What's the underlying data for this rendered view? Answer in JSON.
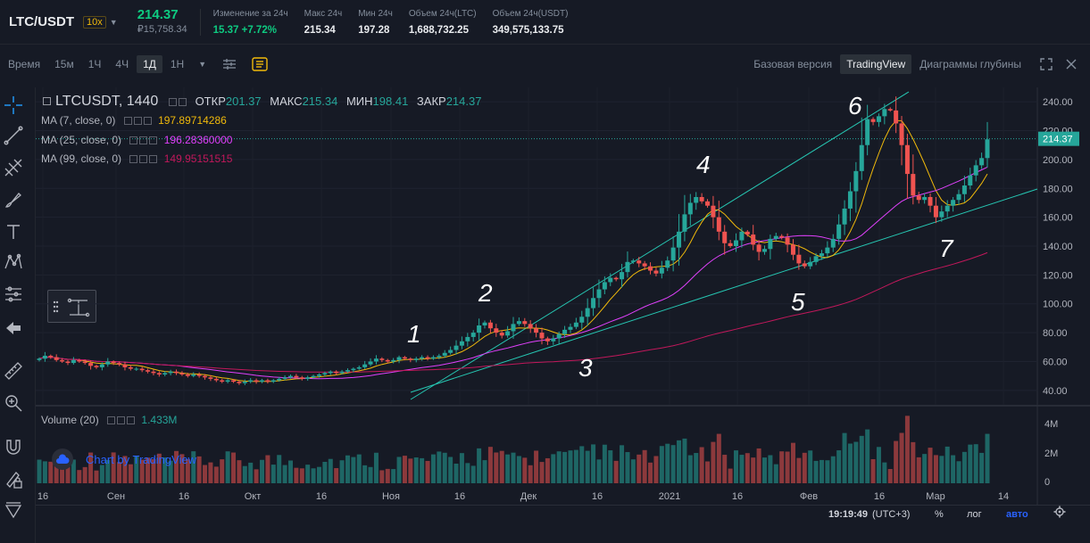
{
  "ticker": {
    "pair": "LTC/USDT",
    "leverage": "10x",
    "last_price": "214.37",
    "rub_price": "₽15,758.34",
    "stats": [
      {
        "label": "Изменение за 24ч",
        "value": "15.37 +7.72%",
        "up": true
      },
      {
        "label": "Макс 24ч",
        "value": "215.34",
        "up": false
      },
      {
        "label": "Мин 24ч",
        "value": "197.28",
        "up": false
      },
      {
        "label": "Объем 24ч(LTC)",
        "value": "1,688,732.25",
        "up": false
      },
      {
        "label": "Объем 24ч(USDT)",
        "value": "349,575,133.75",
        "up": false
      }
    ]
  },
  "toolbar": {
    "time_label": "Время",
    "intervals": [
      "15м",
      "1Ч",
      "4Ч",
      "1Д",
      "1Н"
    ],
    "active_interval": "1Д",
    "views": [
      "Базовая версия",
      "TradingView",
      "Диаграммы глубины"
    ],
    "active_view": "TradingView"
  },
  "legend": {
    "symbol": "LTCUSDT, 1440",
    "open_label": "ОТКР",
    "open": "201.37",
    "high_label": "МАКС",
    "high": "215.34",
    "low_label": "МИН",
    "low": "198.41",
    "close_label": "ЗАКР",
    "close": "214.37"
  },
  "ma": [
    {
      "label": "MA (7, close, 0)",
      "value": "197.89714286",
      "color": "#f0b90b"
    },
    {
      "label": "MA (25, close, 0)",
      "value": "196.28360000",
      "color": "#e040fb"
    },
    {
      "label": "MA (99, close, 0)",
      "value": "149.95151515",
      "color": "#c2185b"
    }
  ],
  "volume": {
    "label": "Volume (20)",
    "value": "1.433M"
  },
  "watermark": "Chart by TradingView",
  "price_axis": [
    "240.00",
    "220.00",
    "200.00",
    "180.00",
    "160.00",
    "140.00",
    "120.00",
    "100.00",
    "80.00",
    "60.00",
    "40.00"
  ],
  "current_price_tag": "214.37",
  "volume_axis": [
    "4M",
    "2M",
    "0"
  ],
  "time_axis": [
    "16",
    "Сен",
    "16",
    "Окт",
    "16",
    "Ноя",
    "16",
    "Дек",
    "16",
    "2021",
    "16",
    "Фев",
    "16",
    "Мар",
    "14"
  ],
  "annotations": [
    "1",
    "2",
    "3",
    "4",
    "5",
    "6",
    "7"
  ],
  "status": {
    "time": "19:19:49",
    "tz": "(UTC+3)",
    "pct": "%",
    "log": "лог",
    "auto": "авто"
  },
  "colors": {
    "up": "#26a69a",
    "down": "#ef5350",
    "bg": "#161a25",
    "channel": "#26c6b2"
  },
  "chart_data": {
    "type": "candlestick",
    "title": "LTCUSDT, 1440",
    "ylim": [
      30,
      250
    ],
    "series": [
      {
        "name": "MA (7, close, 0)",
        "last": 197.89714286
      },
      {
        "name": "MA (25, close, 0)",
        "last": 196.2836
      },
      {
        "name": "MA (99, close, 0)",
        "last": 149.95151515
      }
    ],
    "closes": [
      62,
      64,
      63,
      61,
      60,
      59,
      61,
      60,
      59,
      57,
      56,
      58,
      60,
      59,
      58,
      56,
      55,
      55,
      54,
      53,
      52,
      51,
      52,
      53,
      52,
      51,
      50,
      51,
      50,
      49,
      48,
      47,
      46,
      47,
      46,
      45,
      46,
      47,
      46,
      47,
      46,
      47,
      48,
      49,
      50,
      49,
      48,
      49,
      50,
      51,
      52,
      53,
      52,
      53,
      54,
      55,
      56,
      58,
      60,
      62,
      61,
      60,
      61,
      63,
      62,
      61,
      62,
      63,
      62,
      63,
      64,
      66,
      68,
      71,
      74,
      77,
      80,
      85,
      87,
      83,
      80,
      78,
      81,
      86,
      88,
      86,
      83,
      80,
      76,
      74,
      76,
      79,
      82,
      84,
      87,
      91,
      97,
      104,
      110,
      115,
      118,
      117,
      122,
      129,
      130,
      128,
      126,
      123,
      121,
      125,
      130,
      139,
      150,
      162,
      170,
      174,
      171,
      168,
      160,
      150,
      142,
      140,
      144,
      150,
      148,
      141,
      136,
      138,
      145,
      147,
      146,
      141,
      134,
      128,
      126,
      129,
      133,
      135,
      139,
      145,
      155,
      166,
      178,
      192,
      210,
      228,
      226,
      230,
      235,
      234,
      225,
      210,
      190,
      175,
      172,
      174,
      168,
      160,
      164,
      168,
      172,
      176,
      182,
      189,
      196,
      201,
      214
    ]
  }
}
